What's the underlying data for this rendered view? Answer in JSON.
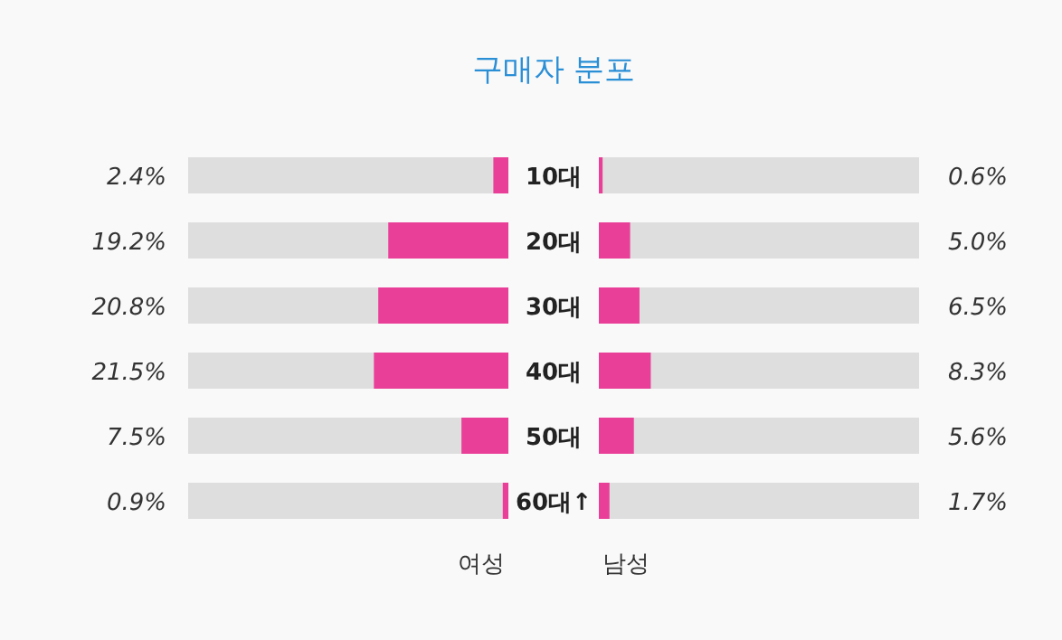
{
  "chart_data": [
    {
      "type": "bar",
      "orientation": "horizontal",
      "title": "구매자 분포",
      "xlabel": "여성",
      "categories": [
        "10대",
        "20대",
        "30대",
        "40대",
        "50대",
        "60대↑"
      ],
      "series": [
        {
          "color": "#ea3f98",
          "values": [
            2.4,
            19.2,
            20.8,
            21.5,
            7.5,
            0.9
          ],
          "value_labels": [
            "2.4%",
            "19.2%",
            "20.8%",
            "21.5%",
            "7.5%",
            "0.9%"
          ]
        }
      ]
    },
    {
      "type": "bar",
      "orientation": "horizontal",
      "xlabel": "남성",
      "tick_labels": false,
      "categories": [
        "10대",
        "20대",
        "30대",
        "40대",
        "50대",
        "60대↑"
      ],
      "series": [
        {
          "color": "#ea3f98",
          "values": [
            0.6,
            5.0,
            6.5,
            8.3,
            5.6,
            1.7
          ],
          "value_labels": [
            "0.6%",
            "5.0%",
            "6.5%",
            "8.3%",
            "5.6%",
            "1.7%"
          ]
        }
      ]
    }
  ]
}
